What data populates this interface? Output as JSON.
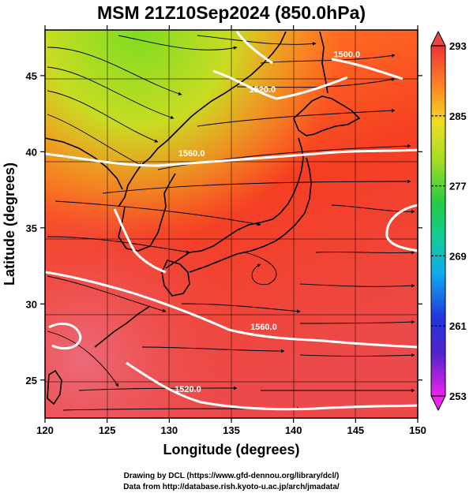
{
  "map": {
    "title": "MSM 21Z10Sep2024 (850.0hPa)",
    "x_axis_label": "Longitude (degrees)",
    "y_axis_label": "Latitude  (degrees)",
    "x_range": [
      120,
      150
    ],
    "y_range": [
      22.5,
      48
    ],
    "x_ticks": [
      {
        "value": 120,
        "label": "120"
      },
      {
        "value": 125,
        "label": "125"
      },
      {
        "value": 130,
        "label": "130"
      },
      {
        "value": 135,
        "label": "135"
      },
      {
        "value": 140,
        "label": "140"
      },
      {
        "value": 145,
        "label": "145"
      },
      {
        "value": 150,
        "label": "150"
      }
    ],
    "y_ticks": [
      {
        "value": 25,
        "label": "25"
      },
      {
        "value": 30,
        "label": "30"
      },
      {
        "value": 35,
        "label": "35"
      },
      {
        "value": 40,
        "label": "40"
      },
      {
        "value": 45,
        "label": "45"
      }
    ],
    "contour_labels": [
      {
        "text": "1560.0",
        "lon": 131.8,
        "lat": 39.7
      },
      {
        "text": "1520.0",
        "lon": 137.5,
        "lat": 43.9
      },
      {
        "text": "1500.0",
        "lon": 144.3,
        "lat": 46.2
      },
      {
        "text": "1560.0",
        "lon": 137.6,
        "lat": 28.3
      },
      {
        "text": "1520.0",
        "lon": 131.5,
        "lat": 24.2
      }
    ]
  },
  "colorbar": {
    "ticks": [
      {
        "value": 253,
        "label": "253"
      },
      {
        "value": 261,
        "label": "261"
      },
      {
        "value": 269,
        "label": "269"
      },
      {
        "value": 277,
        "label": "277"
      },
      {
        "value": 285,
        "label": "285"
      },
      {
        "value": 293,
        "label": "293"
      }
    ],
    "range": [
      253,
      293
    ],
    "colors": [
      "#ee22ee",
      "#2222cc",
      "#1177ee",
      "#11cccc",
      "#22cc55",
      "#99dd22",
      "#eedd22",
      "#ff9922",
      "#ff5522",
      "#ee3333"
    ]
  },
  "credits": {
    "line1": "Drawing by DCL (https://www.gfd-dennou.org/library/dcl/)",
    "line2": "Data from http://database.rish.kyoto-u.ac.jp/arch/jmadata/"
  }
}
